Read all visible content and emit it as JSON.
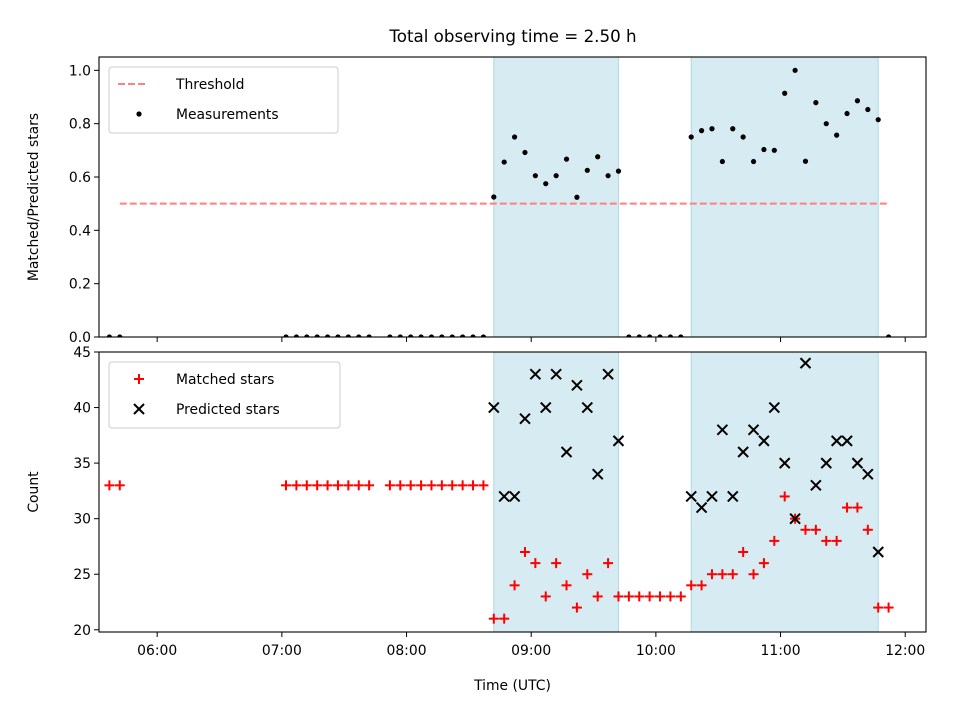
{
  "figure": {
    "title": "Total observing time = 2.50 h"
  },
  "colors": {
    "threshold": "#ff8080",
    "measurement": "#000000",
    "matched": "#ff0000",
    "predicted": "#000000",
    "span_fill": "#add8e6",
    "axes": "#000000"
  },
  "chart_data": [
    {
      "type": "scatter",
      "name": "ratio",
      "ylabel": "Matched/Predicted stars",
      "xlabel": "",
      "ylim": [
        0,
        1.05
      ],
      "yticks": [
        0.0,
        0.2,
        0.4,
        0.6,
        0.8,
        1.0
      ],
      "ytick_labels": [
        "0.0",
        "0.2",
        "0.4",
        "0.6",
        "0.8",
        "1.0"
      ],
      "xlim": [
        "05:32",
        "12:10"
      ],
      "xticks": [
        "06:00",
        "07:00",
        "08:00",
        "09:00",
        "10:00",
        "11:00",
        "12:00"
      ],
      "show_xtick_labels": false,
      "grid": false,
      "legend": {
        "placement": "upper-left",
        "entries": [
          "Threshold",
          "Measurements"
        ]
      },
      "shaded_intervals": [
        [
          "08:42",
          "09:42"
        ],
        [
          "10:17",
          "11:47"
        ]
      ],
      "threshold": {
        "name": "Threshold",
        "style": "dashed",
        "value": 0.5,
        "x_range": [
          "05:42",
          "11:52"
        ]
      },
      "series": [
        {
          "name": "Measurements",
          "marker": "dot",
          "x": [
            "05:37",
            "05:42",
            "07:02",
            "07:07",
            "07:12",
            "07:17",
            "07:22",
            "07:27",
            "07:32",
            "07:37",
            "07:42",
            "07:52",
            "07:57",
            "08:02",
            "08:07",
            "08:12",
            "08:17",
            "08:22",
            "08:27",
            "08:32",
            "08:37",
            "08:42",
            "08:47",
            "08:52",
            "08:57",
            "09:02",
            "09:07",
            "09:12",
            "09:17",
            "09:22",
            "09:27",
            "09:32",
            "09:37",
            "09:42",
            "09:47",
            "09:52",
            "09:57",
            "10:02",
            "10:07",
            "10:12",
            "10:17",
            "10:22",
            "10:27",
            "10:32",
            "10:37",
            "10:42",
            "10:47",
            "10:52",
            "10:57",
            "11:02",
            "11:07",
            "11:12",
            "11:17",
            "11:22",
            "11:27",
            "11:32",
            "11:37",
            "11:42",
            "11:47",
            "11:52"
          ],
          "y": [
            0,
            0,
            0,
            0,
            0,
            0,
            0,
            0,
            0,
            0,
            0,
            0,
            0,
            0,
            0,
            0,
            0,
            0,
            0,
            0,
            0,
            0.525,
            0.656,
            0.75,
            0.692,
            0.605,
            0.575,
            0.605,
            0.667,
            0.524,
            0.625,
            0.676,
            0.605,
            0.622,
            0,
            0,
            0,
            0,
            0,
            0,
            0.75,
            0.774,
            0.781,
            0.658,
            0.781,
            0.75,
            0.658,
            0.703,
            0.7,
            0.914,
            1.0,
            0.659,
            0.879,
            0.8,
            0.757,
            0.838,
            0.886,
            0.853,
            0.815,
            0
          ]
        }
      ]
    },
    {
      "type": "scatter",
      "name": "counts",
      "ylabel": "Count",
      "xlabel": "Time (UTC)",
      "ylim": [
        19.8,
        45
      ],
      "yticks": [
        20,
        25,
        30,
        35,
        40,
        45
      ],
      "ytick_labels": [
        "20",
        "25",
        "30",
        "35",
        "40",
        "45"
      ],
      "xlim": [
        "05:32",
        "12:10"
      ],
      "xticks": [
        "06:00",
        "07:00",
        "08:00",
        "09:00",
        "10:00",
        "11:00",
        "12:00"
      ],
      "show_xtick_labels": true,
      "grid": false,
      "legend": {
        "placement": "upper-left",
        "entries": [
          "Matched stars",
          "Predicted stars"
        ]
      },
      "shaded_intervals": [
        [
          "08:42",
          "09:42"
        ],
        [
          "10:17",
          "11:47"
        ]
      ],
      "series": [
        {
          "name": "Matched stars",
          "marker": "plus",
          "x": [
            "05:37",
            "05:42",
            "07:02",
            "07:07",
            "07:12",
            "07:17",
            "07:22",
            "07:27",
            "07:32",
            "07:37",
            "07:42",
            "07:52",
            "07:57",
            "08:02",
            "08:07",
            "08:12",
            "08:17",
            "08:22",
            "08:27",
            "08:32",
            "08:37",
            "08:42",
            "08:47",
            "08:52",
            "08:57",
            "09:02",
            "09:07",
            "09:12",
            "09:17",
            "09:22",
            "09:27",
            "09:32",
            "09:37",
            "09:42",
            "09:47",
            "09:52",
            "09:57",
            "10:02",
            "10:07",
            "10:12",
            "10:17",
            "10:22",
            "10:27",
            "10:32",
            "10:37",
            "10:42",
            "10:47",
            "10:52",
            "10:57",
            "11:02",
            "11:07",
            "11:12",
            "11:17",
            "11:22",
            "11:27",
            "11:32",
            "11:37",
            "11:42",
            "11:47",
            "11:52"
          ],
          "y": [
            33,
            33,
            33,
            33,
            33,
            33,
            33,
            33,
            33,
            33,
            33,
            33,
            33,
            33,
            33,
            33,
            33,
            33,
            33,
            33,
            33,
            21,
            21,
            24,
            27,
            26,
            23,
            26,
            24,
            22,
            25,
            23,
            26,
            23,
            23,
            23,
            23,
            23,
            23,
            23,
            24,
            24,
            25,
            25,
            25,
            27,
            25,
            26,
            28,
            32,
            30,
            29,
            29,
            28,
            28,
            31,
            31,
            29,
            22,
            22
          ]
        },
        {
          "name": "Predicted stars",
          "marker": "x",
          "x": [
            "08:42",
            "08:47",
            "08:52",
            "08:57",
            "09:02",
            "09:07",
            "09:12",
            "09:17",
            "09:22",
            "09:27",
            "09:32",
            "09:37",
            "09:42",
            "10:17",
            "10:22",
            "10:27",
            "10:32",
            "10:37",
            "10:42",
            "10:47",
            "10:52",
            "10:57",
            "11:02",
            "11:07",
            "11:12",
            "11:17",
            "11:22",
            "11:27",
            "11:32",
            "11:37",
            "11:42",
            "11:47"
          ],
          "y": [
            40,
            32,
            32,
            39,
            43,
            40,
            43,
            36,
            42,
            40,
            34,
            43,
            37,
            32,
            31,
            32,
            38,
            32,
            36,
            38,
            37,
            40,
            35,
            30,
            44,
            33,
            35,
            37,
            37,
            35,
            34,
            27
          ]
        }
      ]
    }
  ]
}
